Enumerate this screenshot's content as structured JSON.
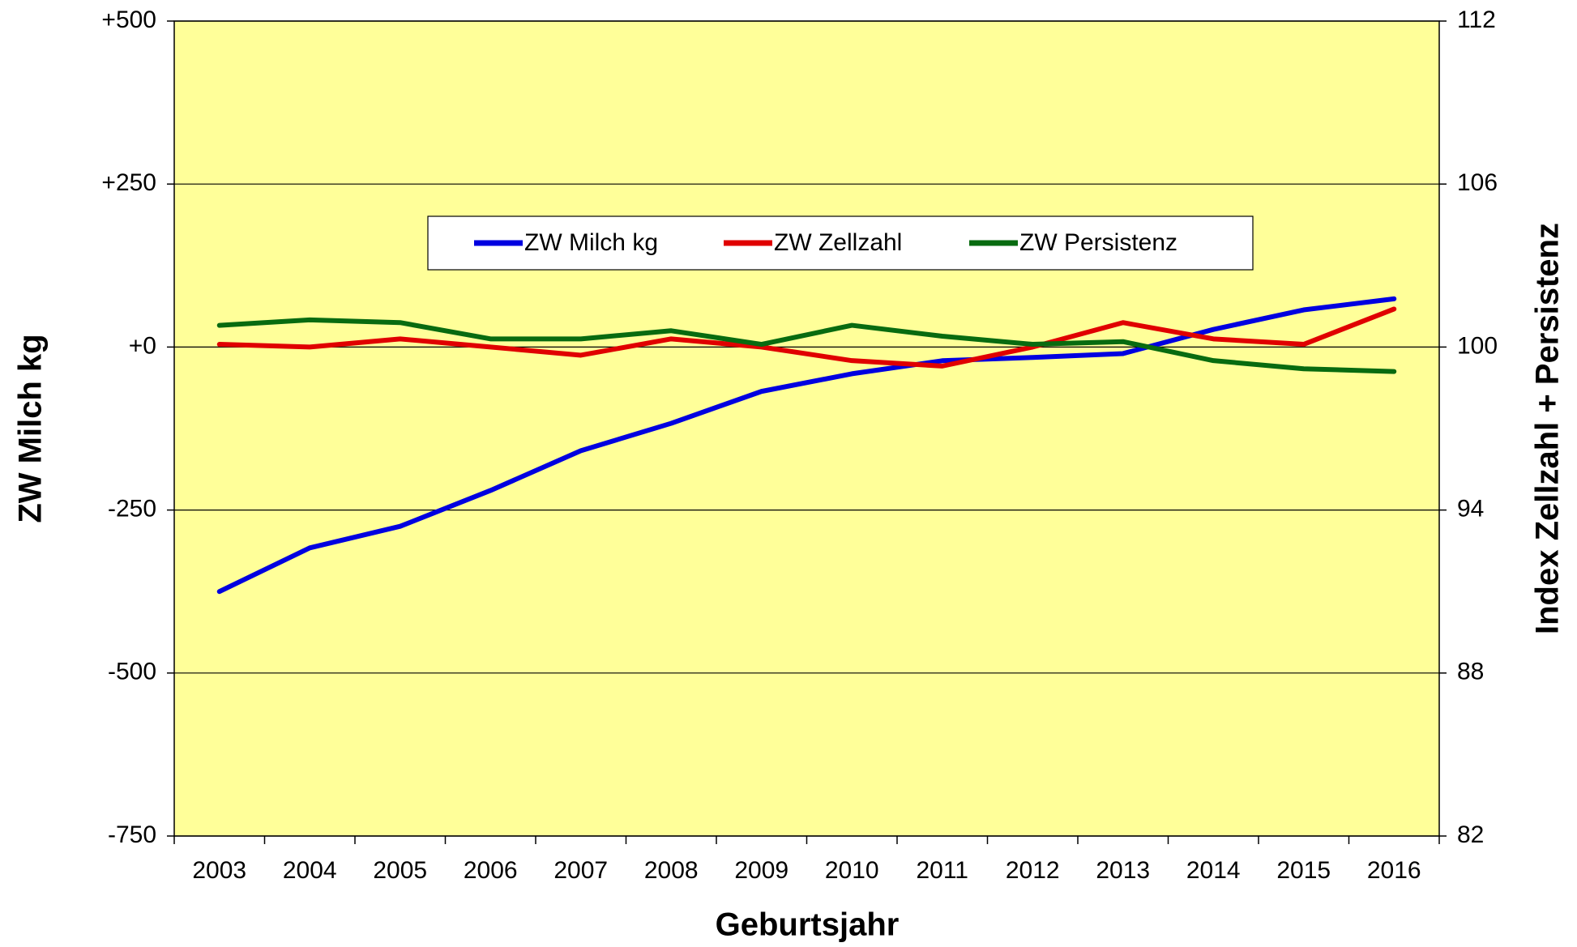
{
  "chart_data": {
    "type": "line",
    "x_label": "Geburtsjahr",
    "y_label": "ZW Milch kg",
    "y2_label": "Index Zellzahl + Persistenz",
    "categories": [
      "2003",
      "2004",
      "2005",
      "2006",
      "2007",
      "2008",
      "2009",
      "2010",
      "2011",
      "2012",
      "2013",
      "2014",
      "2015",
      "2016"
    ],
    "series": [
      {
        "name": "ZW Milch kg",
        "color": "#0000e0",
        "values": [
          -375,
          -308,
          -275,
          -220,
          -159,
          -117,
          -68,
          -41,
          -21,
          -16,
          -10,
          27,
          57,
          74
        ]
      },
      {
        "name": "ZW Zellzahl",
        "color": "#e00000",
        "axis": "y2",
        "values": [
          100.1,
          100.0,
          100.3,
          100.0,
          99.7,
          100.3,
          100.0,
          99.5,
          99.3,
          100.0,
          100.9,
          100.3,
          100.1,
          101.4
        ]
      },
      {
        "name": "ZW Persistenz",
        "color": "#086b10",
        "axis": "y2",
        "values": [
          100.8,
          101.0,
          100.9,
          100.3,
          100.3,
          100.6,
          100.1,
          100.8,
          100.4,
          100.1,
          100.2,
          99.5,
          99.2,
          99.1
        ]
      }
    ],
    "ylim": [
      -750,
      500
    ],
    "yticks": [
      -750,
      -500,
      -250,
      {
        "value": 0,
        "label": "+0"
      },
      {
        "value": 250,
        "label": "+250"
      },
      {
        "value": 500,
        "label": "+500"
      }
    ],
    "y2lim": [
      82,
      112
    ],
    "y2ticks": [
      82,
      88,
      94,
      100,
      106,
      112
    ],
    "grid": true,
    "legend": "upper center",
    "plot_background": "#ffff99"
  }
}
